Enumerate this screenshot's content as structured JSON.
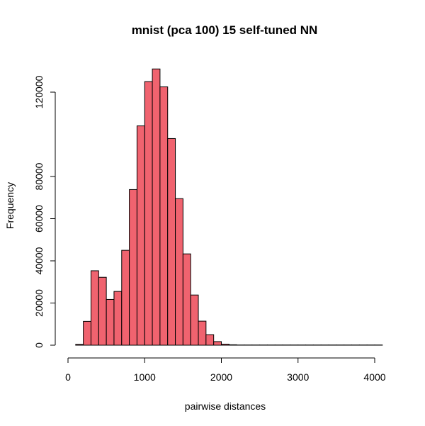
{
  "chart_data": {
    "type": "bar",
    "title": "mnist (pca 100) 15 self-tuned NN",
    "xlabel": "pairwise distances",
    "ylabel": "Frequency",
    "xlim": [
      0,
      4100
    ],
    "ylim": [
      0,
      132000
    ],
    "x_ticks": [
      0,
      1000,
      2000,
      3000,
      4000
    ],
    "y_ticks": [
      0,
      20000,
      40000,
      60000,
      80000,
      120000
    ],
    "bin_width": 100,
    "bin_edges_start": 0,
    "values": [
      0,
      400,
      11300,
      35300,
      32200,
      21700,
      25500,
      45000,
      73800,
      104000,
      125000,
      131000,
      122500,
      98000,
      69500,
      43300,
      23800,
      11400,
      5000,
      1700,
      500,
      200,
      100,
      100,
      100,
      100,
      100,
      100,
      100,
      100,
      100,
      100,
      100,
      100,
      100,
      100,
      100,
      100,
      100,
      100,
      100
    ],
    "bar_color": "#f0636f",
    "grid": false
  }
}
